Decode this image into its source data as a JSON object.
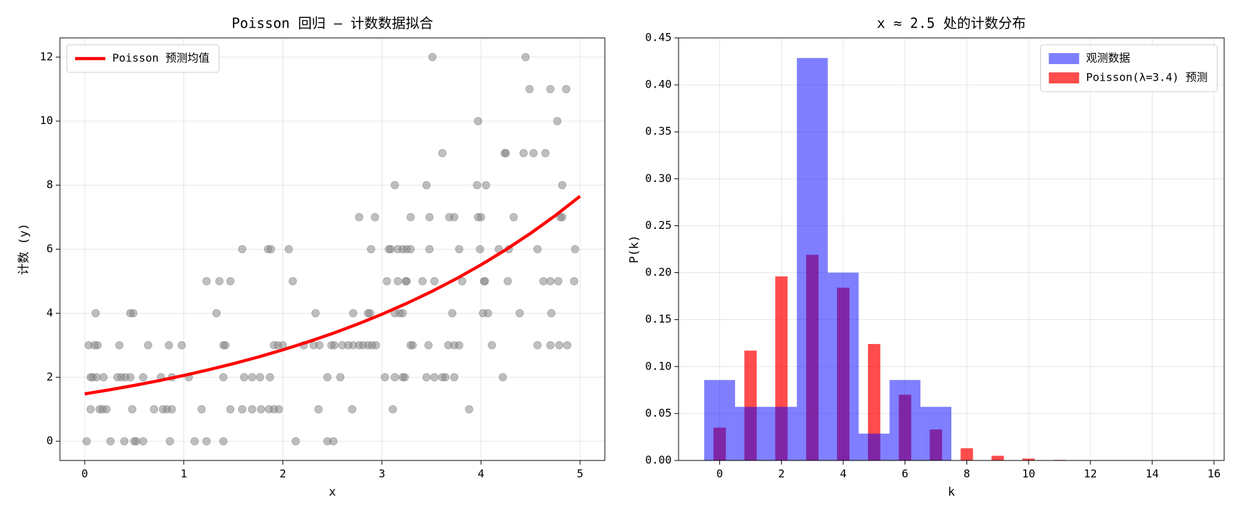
{
  "chart_data": [
    {
      "type": "scatter",
      "title": "Poisson 回归 — 计数数据拟合",
      "xlabel": "x",
      "ylabel": "计数 (y)",
      "xlim": [
        -0.25,
        5.25
      ],
      "ylim": [
        -0.6,
        12.6
      ],
      "xticks": [
        0,
        1,
        2,
        3,
        4,
        5
      ],
      "yticks": [
        0,
        2,
        4,
        6,
        8,
        10,
        12
      ],
      "grid": true,
      "legend": "upper left",
      "series": [
        {
          "type": "scatter",
          "color": "#808080",
          "alpha": 0.5,
          "x": [
            0.02,
            0.26,
            0.4,
            0.5,
            0.52,
            0.59,
            0.86,
            1.11,
            1.23,
            1.4,
            2.13,
            2.45,
            2.51,
            0.06,
            0.15,
            0.18,
            0.22,
            0.48,
            0.7,
            0.79,
            0.83,
            0.88,
            1.18,
            1.47,
            1.59,
            1.69,
            1.78,
            1.86,
            1.91,
            1.96,
            2.36,
            2.7,
            3.11,
            3.88,
            0.06,
            0.08,
            0.12,
            0.19,
            0.33,
            0.37,
            0.41,
            0.46,
            0.59,
            0.77,
            0.88,
            1.05,
            1.4,
            1.61,
            1.69,
            1.77,
            1.87,
            2.45,
            2.58,
            3.03,
            3.13,
            3.21,
            3.23,
            3.45,
            3.53,
            3.61,
            3.64,
            3.73,
            4.22,
            0.04,
            0.1,
            0.13,
            0.35,
            0.64,
            0.85,
            0.98,
            1.4,
            1.42,
            1.91,
            1.95,
            2.0,
            2.21,
            2.31,
            2.37,
            2.49,
            2.52,
            2.6,
            2.66,
            2.71,
            2.77,
            2.81,
            2.86,
            2.9,
            2.94,
            3.29,
            3.31,
            3.47,
            3.67,
            3.73,
            3.78,
            4.11,
            4.57,
            4.7,
            4.79,
            4.87,
            0.11,
            0.46,
            0.49,
            1.33,
            2.33,
            2.71,
            2.86,
            2.88,
            3.13,
            3.18,
            3.21,
            3.71,
            4.02,
            4.07,
            4.39,
            4.71,
            1.23,
            1.36,
            1.47,
            2.1,
            3.05,
            3.16,
            3.24,
            3.25,
            3.41,
            3.53,
            3.81,
            4.03,
            4.04,
            4.27,
            4.63,
            4.7,
            4.78,
            4.94,
            1.59,
            1.85,
            1.88,
            2.06,
            2.89,
            3.07,
            3.09,
            3.16,
            3.21,
            3.25,
            3.29,
            3.48,
            3.78,
            3.99,
            4.18,
            4.28,
            4.57,
            4.95,
            2.77,
            2.93,
            3.29,
            3.48,
            3.68,
            3.73,
            3.97,
            4.0,
            4.33,
            4.8,
            4.82,
            3.13,
            3.45,
            3.96,
            4.05,
            4.82,
            3.61,
            4.24,
            4.25,
            4.43,
            4.53,
            4.65,
            3.97,
            4.77,
            4.49,
            4.7,
            4.86,
            3.51,
            4.45
          ],
          "values": [
            0,
            0,
            0,
            0,
            0,
            0,
            0,
            0,
            0,
            0,
            0,
            0,
            0,
            1,
            1,
            1,
            1,
            1,
            1,
            1,
            1,
            1,
            1,
            1,
            1,
            1,
            1,
            1,
            1,
            1,
            1,
            1,
            1,
            1,
            2,
            2,
            2,
            2,
            2,
            2,
            2,
            2,
            2,
            2,
            2,
            2,
            2,
            2,
            2,
            2,
            2,
            2,
            2,
            2,
            2,
            2,
            2,
            2,
            2,
            2,
            2,
            2,
            2,
            3,
            3,
            3,
            3,
            3,
            3,
            3,
            3,
            3,
            3,
            3,
            3,
            3,
            3,
            3,
            3,
            3,
            3,
            3,
            3,
            3,
            3,
            3,
            3,
            3,
            3,
            3,
            3,
            3,
            3,
            3,
            3,
            3,
            3,
            3,
            3,
            4,
            4,
            4,
            4,
            4,
            4,
            4,
            4,
            4,
            4,
            4,
            4,
            4,
            4,
            4,
            4,
            5,
            5,
            5,
            5,
            5,
            5,
            5,
            5,
            5,
            5,
            5,
            5,
            5,
            5,
            5,
            5,
            5,
            5,
            6,
            6,
            6,
            6,
            6,
            6,
            6,
            6,
            6,
            6,
            6,
            6,
            6,
            6,
            6,
            6,
            6,
            6,
            7,
            7,
            7,
            7,
            7,
            7,
            7,
            7,
            7,
            7,
            7,
            8,
            8,
            8,
            8,
            8,
            9,
            9,
            9,
            9,
            9,
            9,
            10,
            10,
            11,
            11,
            11,
            12,
            12
          ]
        },
        {
          "type": "line",
          "name": "Poisson 预测均值",
          "color": "#ff0000",
          "x": [
            0,
            0.25,
            0.5,
            0.75,
            1,
            1.25,
            1.5,
            1.75,
            2,
            2.25,
            2.5,
            2.75,
            3,
            3.25,
            3.5,
            3.75,
            4,
            4.25,
            4.5,
            4.75,
            5
          ],
          "values": [
            1.48,
            1.607,
            1.744,
            1.894,
            2.056,
            2.232,
            2.423,
            2.63,
            2.856,
            3.1,
            3.366,
            3.654,
            3.967,
            4.307,
            4.676,
            5.076,
            5.511,
            5.983,
            6.496,
            7.052,
            7.656
          ]
        }
      ]
    },
    {
      "type": "histogram",
      "title": "x ≈ 2.5 处的计数分布",
      "xlabel": "k",
      "ylabel": "P(k)",
      "xlim": [
        -1.33,
        16.33
      ],
      "ylim": [
        0,
        0.45
      ],
      "xticks": [
        0,
        2,
        4,
        6,
        8,
        10,
        12,
        14,
        16
      ],
      "yticks": [
        {
          "value": 0,
          "label": "0.00"
        },
        {
          "value": 0.05,
          "label": "0.05"
        },
        {
          "value": 0.1,
          "label": "0.10"
        },
        {
          "value": 0.15,
          "label": "0.15"
        },
        {
          "value": 0.2,
          "label": "0.20"
        },
        {
          "value": 0.25,
          "label": "0.25"
        },
        {
          "value": 0.3,
          "label": "0.30"
        },
        {
          "value": 0.35,
          "label": "0.35"
        },
        {
          "value": 0.4,
          "label": "0.40"
        },
        {
          "value": 0.45,
          "label": "0.45"
        }
      ],
      "grid": true,
      "legend": "upper right",
      "series": [
        {
          "type": "histogram",
          "name": "观测数据",
          "color": "#0000ff",
          "alpha": 0.5,
          "bins": [
            -0.5,
            0.5,
            1.5,
            2.5,
            3.5,
            4.5,
            5.5,
            6.5,
            7.5
          ],
          "values": [
            0.0857,
            0.0571,
            0.0571,
            0.4286,
            0.2,
            0.0286,
            0.0857,
            0.0571
          ]
        },
        {
          "type": "bar",
          "name": "Poisson(λ=3.4) 预测",
          "color": "#ff0000",
          "alpha": 0.7,
          "x": [
            0,
            1,
            2,
            3,
            4,
            5,
            6,
            7,
            8,
            9,
            10,
            11,
            12,
            13,
            14,
            15
          ],
          "values": [
            0.035,
            0.117,
            0.196,
            0.219,
            0.184,
            0.124,
            0.07,
            0.033,
            0.013,
            0.005,
            0.002,
            0.0006,
            0.0002,
            4e-05,
            1e-05,
            2e-06
          ]
        }
      ]
    }
  ]
}
